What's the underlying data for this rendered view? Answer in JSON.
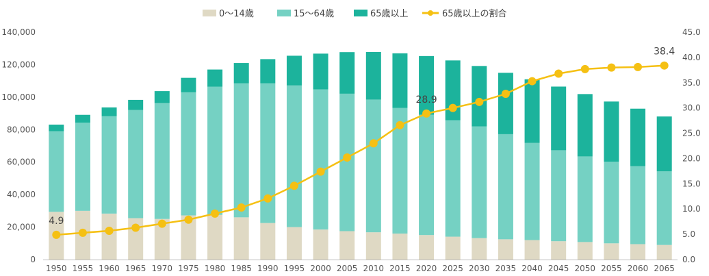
{
  "chart_data": {
    "type": "bar",
    "subtype": "stacked-bar-with-line",
    "title": "",
    "categories": [
      "1950",
      "1955",
      "1960",
      "1965",
      "1970",
      "1975",
      "1980",
      "1985",
      "1990",
      "1995",
      "2000",
      "2005",
      "2010",
      "2015",
      "2020",
      "2025",
      "2030",
      "2035",
      "2040",
      "2045",
      "2050",
      "2055",
      "2060",
      "2065"
    ],
    "series": [
      {
        "name": "0～14歳",
        "kind": "bar",
        "axis": "left",
        "color": "#dfd9c4",
        "values": [
          29400,
          30000,
          28300,
          25500,
          25000,
          27200,
          27500,
          26000,
          22500,
          20000,
          18500,
          17500,
          16800,
          16000,
          15100,
          14100,
          13200,
          12500,
          12000,
          11300,
          10800,
          10000,
          9500,
          9000
        ]
      },
      {
        "name": "15～64歳",
        "kind": "bar",
        "axis": "left",
        "color": "#75d1c3",
        "values": [
          49600,
          54300,
          60000,
          66600,
          71400,
          75800,
          78900,
          82500,
          86000,
          87200,
          86300,
          84600,
          81700,
          77400,
          74100,
          71700,
          68800,
          64700,
          59800,
          56000,
          52700,
          50300,
          48000,
          45300
        ]
      },
      {
        "name": "65歳以上",
        "kind": "bar",
        "axis": "left",
        "color": "#1cb39c",
        "values": [
          4100,
          4800,
          5400,
          6200,
          7300,
          8900,
          10600,
          12500,
          14900,
          18300,
          22000,
          25600,
          29300,
          33600,
          36100,
          36800,
          37200,
          37800,
          39200,
          39200,
          38400,
          37000,
          35400,
          33800
        ]
      },
      {
        "name": "65歳以上の割合",
        "kind": "line",
        "axis": "right",
        "color": "#f5c013",
        "values": [
          4.9,
          5.3,
          5.7,
          6.3,
          7.1,
          7.9,
          9.1,
          10.3,
          12.1,
          14.6,
          17.4,
          20.2,
          23.0,
          26.6,
          28.9,
          30.0,
          31.2,
          32.8,
          35.3,
          36.8,
          37.7,
          38.0,
          38.1,
          38.4
        ]
      }
    ],
    "y_left": {
      "min": 0,
      "max": 140000,
      "ticks": [
        "0",
        "20,000",
        "40,000",
        "60,000",
        "80,000",
        "100,000",
        "120,000",
        "140,000"
      ]
    },
    "y_right": {
      "min": 0,
      "max": 45,
      "ticks": [
        "0.0",
        "5.0",
        "10.0",
        "15.0",
        "20.0",
        "25.0",
        "30.0",
        "35.0",
        "40.0",
        "45.0"
      ]
    },
    "annotations": [
      {
        "category": "1950",
        "text": "4.9"
      },
      {
        "category": "2020",
        "text": "28.9"
      },
      {
        "category": "2065",
        "text": "38.4"
      }
    ],
    "legend": {
      "placement": "top-center"
    },
    "grid": false
  }
}
